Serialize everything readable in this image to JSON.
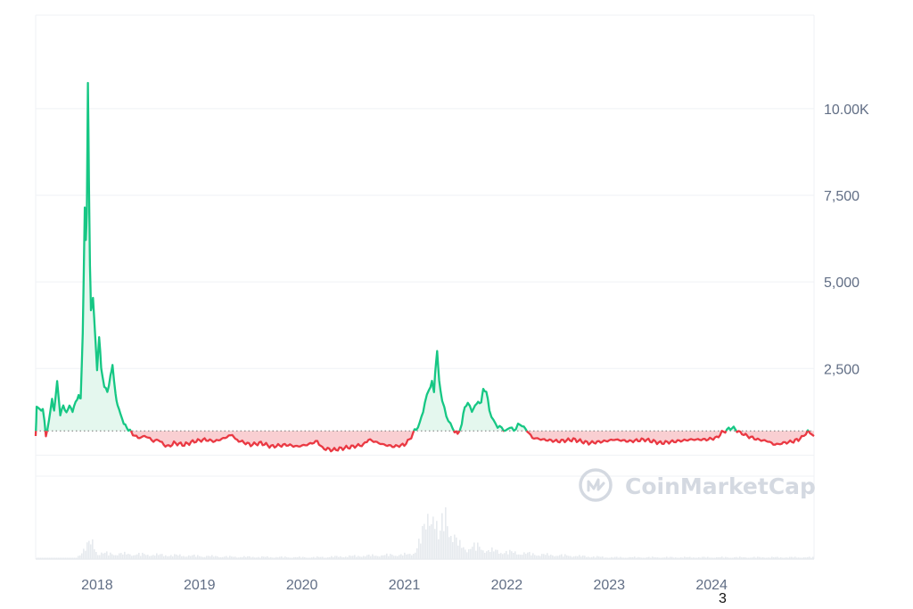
{
  "colors": {
    "up": "#16c784",
    "down": "#ea3943",
    "up_fill": "#e4f7ee",
    "down_fill": "#f9cfd2",
    "grid": "#eff2f5",
    "axis_text": "#616e85",
    "volume": "#e6eaee",
    "watermark": "#d4d9e1"
  },
  "watermark": {
    "text": "CoinMarketCap",
    "icon": "coinmarketcap-logo-icon"
  },
  "footnote": "3",
  "chart_data": {
    "type": "area",
    "title": "",
    "xlabel": "",
    "ylabel": "",
    "y_ticks": [
      {
        "value": 2500,
        "label": "2,500"
      },
      {
        "value": 5000,
        "label": "5,000"
      },
      {
        "value": 7500,
        "label": "7,500"
      },
      {
        "value": 10000,
        "label": "10.00K"
      }
    ],
    "x_ticks": [
      {
        "value": 2018.0,
        "label": "2018"
      },
      {
        "value": 2019.0,
        "label": "2019"
      },
      {
        "value": 2020.0,
        "label": "2020"
      },
      {
        "value": 2021.0,
        "label": "2021"
      },
      {
        "value": 2022.0,
        "label": "2022"
      },
      {
        "value": 2023.0,
        "label": "2023"
      },
      {
        "value": 2024.0,
        "label": "2024"
      }
    ],
    "xlim": [
      2017.4,
      2025.0
    ],
    "ylim": [
      -3000,
      12700
    ],
    "baseline": 700,
    "grid": true,
    "price_points": [
      [
        2017.4,
        600
      ],
      [
        2017.41,
        1400
      ],
      [
        2017.44,
        1300
      ],
      [
        2017.47,
        1350
      ],
      [
        2017.5,
        550
      ],
      [
        2017.53,
        1000
      ],
      [
        2017.56,
        1600
      ],
      [
        2017.58,
        1300
      ],
      [
        2017.61,
        2100
      ],
      [
        2017.64,
        1200
      ],
      [
        2017.67,
        1400
      ],
      [
        2017.7,
        1250
      ],
      [
        2017.73,
        1400
      ],
      [
        2017.76,
        1300
      ],
      [
        2017.79,
        1500
      ],
      [
        2017.82,
        1750
      ],
      [
        2017.84,
        1600
      ],
      [
        2017.86,
        3500
      ],
      [
        2017.88,
        7200
      ],
      [
        2017.89,
        6200
      ],
      [
        2017.9,
        7000
      ],
      [
        2017.91,
        10700
      ],
      [
        2017.92,
        8000
      ],
      [
        2017.93,
        5500
      ],
      [
        2017.94,
        4200
      ],
      [
        2017.96,
        4500
      ],
      [
        2017.98,
        3500
      ],
      [
        2018.0,
        2500
      ],
      [
        2018.02,
        3400
      ],
      [
        2018.04,
        2500
      ],
      [
        2018.07,
        2000
      ],
      [
        2018.1,
        1800
      ],
      [
        2018.13,
        2300
      ],
      [
        2018.15,
        2550
      ],
      [
        2018.18,
        1800
      ],
      [
        2018.2,
        1400
      ],
      [
        2018.23,
        1200
      ],
      [
        2018.26,
        900
      ],
      [
        2018.29,
        800
      ],
      [
        2018.32,
        700
      ],
      [
        2018.35,
        600
      ],
      [
        2018.4,
        500
      ],
      [
        2018.48,
        550
      ],
      [
        2018.55,
        400
      ],
      [
        2018.6,
        450
      ],
      [
        2018.65,
        300
      ],
      [
        2018.7,
        250
      ],
      [
        2018.75,
        350
      ],
      [
        2018.85,
        300
      ],
      [
        2018.95,
        400
      ],
      [
        2019.05,
        450
      ],
      [
        2019.15,
        400
      ],
      [
        2019.25,
        500
      ],
      [
        2019.32,
        600
      ],
      [
        2019.35,
        450
      ],
      [
        2019.4,
        400
      ],
      [
        2019.5,
        300
      ],
      [
        2019.6,
        350
      ],
      [
        2019.7,
        250
      ],
      [
        2019.85,
        300
      ],
      [
        2019.95,
        250
      ],
      [
        2020.05,
        300
      ],
      [
        2020.15,
        400
      ],
      [
        2020.2,
        200
      ],
      [
        2020.3,
        150
      ],
      [
        2020.4,
        200
      ],
      [
        2020.5,
        250
      ],
      [
        2020.6,
        300
      ],
      [
        2020.65,
        450
      ],
      [
        2020.7,
        400
      ],
      [
        2020.75,
        350
      ],
      [
        2020.8,
        300
      ],
      [
        2020.9,
        250
      ],
      [
        2021.0,
        300
      ],
      [
        2021.05,
        450
      ],
      [
        2021.1,
        700
      ],
      [
        2021.15,
        900
      ],
      [
        2021.2,
        1500
      ],
      [
        2021.24,
        1900
      ],
      [
        2021.27,
        2100
      ],
      [
        2021.29,
        1800
      ],
      [
        2021.3,
        2400
      ],
      [
        2021.32,
        3000
      ],
      [
        2021.34,
        2100
      ],
      [
        2021.37,
        1600
      ],
      [
        2021.41,
        1100
      ],
      [
        2021.45,
        900
      ],
      [
        2021.49,
        700
      ],
      [
        2021.52,
        600
      ],
      [
        2021.56,
        900
      ],
      [
        2021.59,
        1400
      ],
      [
        2021.62,
        1500
      ],
      [
        2021.66,
        1300
      ],
      [
        2021.69,
        1400
      ],
      [
        2021.72,
        1550
      ],
      [
        2021.75,
        1500
      ],
      [
        2021.77,
        1900
      ],
      [
        2021.8,
        1850
      ],
      [
        2021.83,
        1300
      ],
      [
        2021.87,
        1000
      ],
      [
        2021.91,
        800
      ],
      [
        2021.95,
        800
      ],
      [
        2021.99,
        700
      ],
      [
        2022.03,
        800
      ],
      [
        2022.07,
        700
      ],
      [
        2022.11,
        900
      ],
      [
        2022.15,
        850
      ],
      [
        2022.2,
        700
      ],
      [
        2022.25,
        500
      ],
      [
        2022.35,
        450
      ],
      [
        2022.5,
        400
      ],
      [
        2022.65,
        450
      ],
      [
        2022.8,
        350
      ],
      [
        2022.95,
        400
      ],
      [
        2023.05,
        450
      ],
      [
        2023.2,
        400
      ],
      [
        2023.35,
        450
      ],
      [
        2023.5,
        350
      ],
      [
        2023.65,
        400
      ],
      [
        2023.8,
        450
      ],
      [
        2023.95,
        450
      ],
      [
        2024.05,
        500
      ],
      [
        2024.1,
        650
      ],
      [
        2024.2,
        800
      ],
      [
        2024.28,
        650
      ],
      [
        2024.35,
        550
      ],
      [
        2024.45,
        450
      ],
      [
        2024.55,
        400
      ],
      [
        2024.62,
        300
      ],
      [
        2024.7,
        350
      ],
      [
        2024.8,
        400
      ],
      [
        2024.88,
        500
      ],
      [
        2024.94,
        700
      ],
      [
        2025.0,
        550
      ]
    ],
    "volume_points": [
      [
        2017.94,
        0.3
      ],
      [
        2018.0,
        0.1
      ],
      [
        2019.3,
        0.04
      ],
      [
        2020.1,
        0.03
      ],
      [
        2020.65,
        0.06
      ],
      [
        2021.05,
        0.08
      ],
      [
        2021.1,
        0.15
      ],
      [
        2021.2,
        0.55
      ],
      [
        2021.27,
        0.95
      ],
      [
        2021.33,
        0.3
      ],
      [
        2021.39,
        0.85
      ],
      [
        2021.45,
        0.45
      ],
      [
        2021.52,
        0.25
      ],
      [
        2021.6,
        0.18
      ],
      [
        2021.7,
        0.22
      ],
      [
        2021.8,
        0.15
      ],
      [
        2022.0,
        0.12
      ],
      [
        2022.3,
        0.08
      ],
      [
        2023.0,
        0.03
      ],
      [
        2024.2,
        0.03
      ]
    ]
  }
}
